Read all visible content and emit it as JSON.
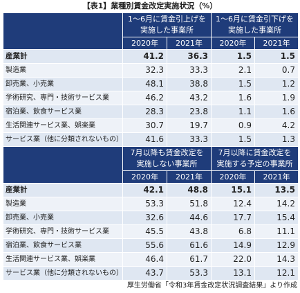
{
  "title": "【表1】業種別賃金改定実施状況（%）",
  "years": [
    "2020年",
    "2021年",
    "2020年",
    "2021年"
  ],
  "upper": {
    "col_a": [
      "1～6月に賃金引上げを",
      "実施した事業所"
    ],
    "col_b": [
      "1～6月に賃金引下げを",
      "実施した事業所"
    ],
    "rows": [
      {
        "label": "産業計",
        "values": [
          "41.2",
          "36.3",
          "1.5",
          "1.5"
        ]
      },
      {
        "label": "製造業",
        "values": [
          "32.3",
          "33.3",
          "2.1",
          "0.7"
        ]
      },
      {
        "label": "卸売業、小売業",
        "values": [
          "48.1",
          "38.8",
          "1.5",
          "1.2"
        ]
      },
      {
        "label": "学術研究、専門・技術サービス業",
        "values": [
          "46.2",
          "43.2",
          "1.6",
          "1.9"
        ]
      },
      {
        "label": "宿泊業、飲食サービス業",
        "values": [
          "28.3",
          "23.8",
          "1.1",
          "1.6"
        ]
      },
      {
        "label": "生活関連サービス業、娯楽業",
        "values": [
          "30.7",
          "19.7",
          "0.9",
          "4.2"
        ]
      },
      {
        "label": "サービス業（他に分類されないもの）",
        "values": [
          "41.6",
          "33.3",
          "1.5",
          "1.3"
        ]
      }
    ]
  },
  "lower": {
    "col_a": [
      "7月以降も賃金改定を",
      "実施しない事業所"
    ],
    "col_b": [
      "7月以降に賃金改定を",
      "実施する予定の事業所"
    ],
    "rows": [
      {
        "label": "産業計",
        "values": [
          "42.1",
          "48.8",
          "15.1",
          "13.5"
        ]
      },
      {
        "label": "製造業",
        "values": [
          "53.3",
          "51.8",
          "12.4",
          "14.2"
        ]
      },
      {
        "label": "卸売業、小売業",
        "values": [
          "32.6",
          "44.6",
          "17.7",
          "15.4"
        ]
      },
      {
        "label": "学術研究、専門・技術サービス業",
        "values": [
          "45.5",
          "43.8",
          "6.8",
          "11.1"
        ]
      },
      {
        "label": "宿泊業、飲食サービス業",
        "values": [
          "55.6",
          "61.6",
          "14.9",
          "12.9"
        ]
      },
      {
        "label": "生活関連サービス業、娯楽業",
        "values": [
          "46.4",
          "61.7",
          "22.0",
          "14.3"
        ]
      },
      {
        "label": "サービス業（他に分類されないもの）",
        "values": [
          "43.7",
          "53.3",
          "13.1",
          "12.1"
        ]
      }
    ]
  },
  "source": "厚生労働省「令和3年賃金改定状況調査結果」より作成",
  "colors": {
    "header": "#1f3c7a",
    "row": "#dfe7f2",
    "row_alt": "#eef2f8"
  }
}
